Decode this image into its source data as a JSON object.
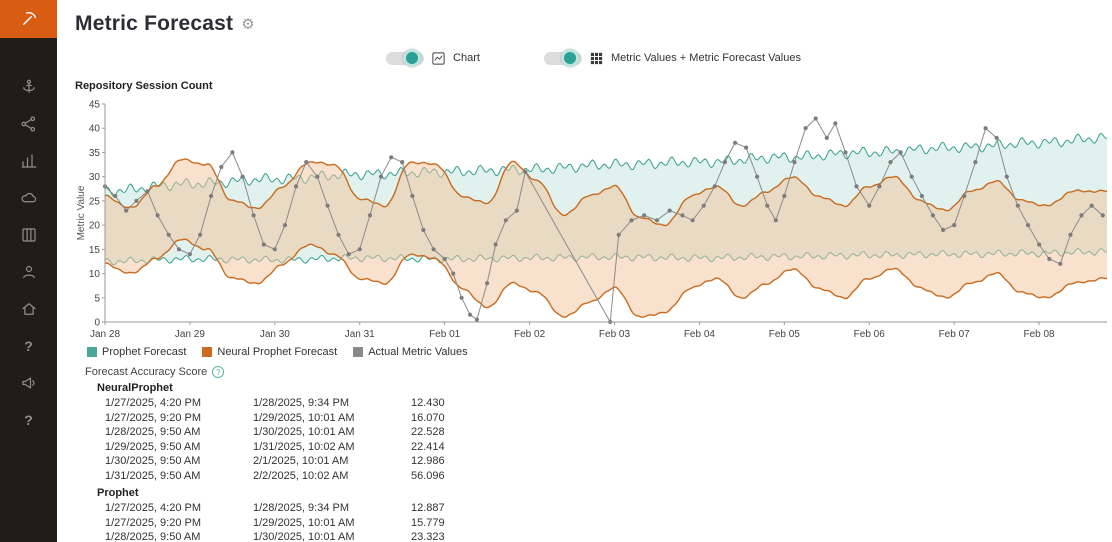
{
  "sidebar": {
    "icons": [
      "logo",
      "anchor",
      "connections",
      "bar-chart",
      "cloud",
      "library",
      "user",
      "home",
      "help",
      "announcements",
      "help-2"
    ]
  },
  "header": {
    "title": "Metric Forecast"
  },
  "controls": {
    "chart_toggle": {
      "label": "Chart",
      "state": "on"
    },
    "values_toggle": {
      "label": "Metric Values + Metric Forecast Values",
      "state": "on"
    }
  },
  "legend": [
    {
      "label": "Prophet Forecast",
      "color": "#4ba79a"
    },
    {
      "label": "Neural Prophet Forecast",
      "color": "#cc6a1f"
    },
    {
      "label": "Actual Metric Values",
      "color": "#8a8a8a"
    }
  ],
  "accuracy": {
    "title": "Forecast Accuracy Score",
    "groups": [
      {
        "name": "NeuralProphet",
        "rows": [
          [
            "1/27/2025, 4:20 PM",
            "1/28/2025, 9:34 PM",
            "12.430"
          ],
          [
            "1/27/2025, 9:20 PM",
            "1/29/2025, 10:01 AM",
            "16.070"
          ],
          [
            "1/28/2025, 9:50 AM",
            "1/30/2025, 10:01 AM",
            "22.528"
          ],
          [
            "1/29/2025, 9:50 AM",
            "1/31/2025, 10:02 AM",
            "22.414"
          ],
          [
            "1/30/2025, 9:50 AM",
            "2/1/2025, 10:01 AM",
            "12.986"
          ],
          [
            "1/31/2025, 9:50 AM",
            "2/2/2025, 10:02 AM",
            "56.096"
          ]
        ]
      },
      {
        "name": "Prophet",
        "rows": [
          [
            "1/27/2025, 4:20 PM",
            "1/28/2025, 9:34 PM",
            "12.887"
          ],
          [
            "1/27/2025, 9:20 PM",
            "1/29/2025, 10:01 AM",
            "15.779"
          ],
          [
            "1/28/2025, 9:50 AM",
            "1/30/2025, 10:01 AM",
            "23.323"
          ]
        ]
      }
    ]
  },
  "chart_data": {
    "type": "line",
    "title": "Repository Session Count",
    "ylabel": "Metric Value",
    "ylim": [
      0,
      45
    ],
    "y_tick_step": 5,
    "x_max": 11.8,
    "x_ticks": [
      "Jan 28",
      "Jan 29",
      "Jan 30",
      "Jan 31",
      "Feb 01",
      "Feb 02",
      "Feb 03",
      "Feb 04",
      "Feb 05",
      "Feb 06",
      "Feb 07",
      "Feb 08"
    ],
    "series": {
      "prophet_upper": {
        "name": "Prophet Forecast upper bound",
        "color": "#35a08f",
        "fill": "#c9e5df",
        "noise": 1.2,
        "points": [
          [
            0,
            27
          ],
          [
            1,
            28.5
          ],
          [
            2,
            29.5
          ],
          [
            3,
            30.5
          ],
          [
            4,
            31
          ],
          [
            5,
            31.5
          ],
          [
            6,
            32.5
          ],
          [
            7,
            33
          ],
          [
            8,
            34
          ],
          [
            9,
            35
          ],
          [
            10,
            36
          ],
          [
            11,
            37
          ],
          [
            11.8,
            38
          ]
        ]
      },
      "prophet_lower": {
        "name": "Prophet Forecast lower bound",
        "color": "#35a08f",
        "noise": 0.8,
        "points": [
          [
            0,
            12.5
          ],
          [
            1,
            13
          ],
          [
            2,
            12.8
          ],
          [
            3,
            13.2
          ],
          [
            4,
            13
          ],
          [
            5,
            13.2
          ],
          [
            6,
            13.4
          ],
          [
            7,
            13.2
          ],
          [
            8,
            13.5
          ],
          [
            9,
            13.8
          ],
          [
            10,
            14
          ],
          [
            11,
            14.2
          ],
          [
            11.8,
            14.5
          ]
        ]
      },
      "neural_upper": {
        "name": "Neural Prophet Forecast upper bound",
        "color": "#c96b1f",
        "fill": "#f2c49c",
        "noise": 0.25,
        "points": [
          [
            0,
            26
          ],
          [
            0.3,
            23.5
          ],
          [
            0.6,
            28
          ],
          [
            0.9,
            33.5
          ],
          [
            1.2,
            32.5
          ],
          [
            1.5,
            25
          ],
          [
            1.8,
            23.5
          ],
          [
            2.1,
            28
          ],
          [
            2.4,
            33
          ],
          [
            2.7,
            32.5
          ],
          [
            3,
            25.5
          ],
          [
            3.3,
            24
          ],
          [
            3.6,
            33
          ],
          [
            3.9,
            32.5
          ],
          [
            4.2,
            26
          ],
          [
            4.5,
            24.5
          ],
          [
            4.8,
            33
          ],
          [
            5.1,
            29
          ],
          [
            5.4,
            22
          ],
          [
            5.7,
            26
          ],
          [
            6,
            28
          ],
          [
            6.3,
            21.5
          ],
          [
            6.6,
            20
          ],
          [
            6.9,
            26
          ],
          [
            7.2,
            28
          ],
          [
            7.5,
            24
          ],
          [
            7.8,
            27
          ],
          [
            8.1,
            30
          ],
          [
            8.4,
            26
          ],
          [
            8.7,
            24
          ],
          [
            9,
            28
          ],
          [
            9.3,
            30
          ],
          [
            9.6,
            25
          ],
          [
            9.9,
            23
          ],
          [
            10.2,
            27
          ],
          [
            10.5,
            29
          ],
          [
            10.8,
            25
          ],
          [
            11.1,
            24
          ],
          [
            11.4,
            27
          ],
          [
            11.8,
            27
          ]
        ]
      },
      "neural_lower": {
        "name": "Neural Prophet Forecast lower bound",
        "color": "#c96b1f",
        "noise": 0.25,
        "points": [
          [
            0,
            12
          ],
          [
            0.3,
            10
          ],
          [
            0.6,
            13
          ],
          [
            0.9,
            17
          ],
          [
            1.2,
            15
          ],
          [
            1.5,
            9
          ],
          [
            1.8,
            8
          ],
          [
            2.1,
            12
          ],
          [
            2.4,
            16
          ],
          [
            2.7,
            14
          ],
          [
            3,
            9
          ],
          [
            3.3,
            8
          ],
          [
            3.6,
            14
          ],
          [
            3.9,
            13
          ],
          [
            4.2,
            7
          ],
          [
            4.5,
            3
          ],
          [
            4.8,
            8
          ],
          [
            5.1,
            6
          ],
          [
            5.4,
            1
          ],
          [
            5.7,
            4
          ],
          [
            6,
            7
          ],
          [
            6.3,
            1
          ],
          [
            6.6,
            2
          ],
          [
            6.9,
            7
          ],
          [
            7.2,
            9
          ],
          [
            7.5,
            5
          ],
          [
            7.8,
            8
          ],
          [
            8.1,
            11
          ],
          [
            8.4,
            7
          ],
          [
            8.7,
            5
          ],
          [
            9,
            9
          ],
          [
            9.3,
            11
          ],
          [
            9.6,
            7
          ],
          [
            9.9,
            5
          ],
          [
            10.2,
            8
          ],
          [
            10.5,
            10
          ],
          [
            10.8,
            6
          ],
          [
            11.1,
            5
          ],
          [
            11.4,
            8
          ],
          [
            11.8,
            9
          ]
        ]
      },
      "actual": {
        "name": "Actual Metric Values",
        "color": "#8a8a8a",
        "points": [
          [
            0,
            28
          ],
          [
            0.12,
            26
          ],
          [
            0.25,
            23
          ],
          [
            0.37,
            25
          ],
          [
            0.5,
            27
          ],
          [
            0.62,
            22
          ],
          [
            0.75,
            18
          ],
          [
            0.87,
            15
          ],
          [
            1,
            14
          ],
          [
            1.12,
            18
          ],
          [
            1.25,
            26
          ],
          [
            1.37,
            32
          ],
          [
            1.5,
            35
          ],
          [
            1.62,
            30
          ],
          [
            1.75,
            22
          ],
          [
            1.87,
            16
          ],
          [
            2,
            15
          ],
          [
            2.12,
            20
          ],
          [
            2.25,
            28
          ],
          [
            2.37,
            33
          ],
          [
            2.5,
            30
          ],
          [
            2.62,
            24
          ],
          [
            2.75,
            18
          ],
          [
            2.87,
            14
          ],
          [
            3,
            15
          ],
          [
            3.12,
            22
          ],
          [
            3.25,
            30
          ],
          [
            3.37,
            34
          ],
          [
            3.5,
            33
          ],
          [
            3.62,
            26
          ],
          [
            3.75,
            19
          ],
          [
            3.87,
            15
          ],
          [
            4,
            13
          ],
          [
            4.1,
            10
          ],
          [
            4.2,
            5
          ],
          [
            4.3,
            1.5
          ],
          [
            4.38,
            0.5
          ],
          [
            4.5,
            8
          ],
          [
            4.6,
            16
          ],
          [
            4.72,
            21
          ],
          [
            4.85,
            23
          ],
          [
            4.95,
            31
          ],
          [
            5.95,
            0
          ],
          [
            6.05,
            18
          ],
          [
            6.2,
            21
          ],
          [
            6.35,
            22
          ],
          [
            6.5,
            21
          ],
          [
            6.65,
            23
          ],
          [
            6.8,
            22
          ],
          [
            6.92,
            21
          ],
          [
            7.05,
            24
          ],
          [
            7.18,
            28
          ],
          [
            7.3,
            33
          ],
          [
            7.42,
            37
          ],
          [
            7.55,
            36
          ],
          [
            7.68,
            30
          ],
          [
            7.8,
            24
          ],
          [
            7.9,
            21
          ],
          [
            8,
            26
          ],
          [
            8.12,
            33
          ],
          [
            8.25,
            40
          ],
          [
            8.37,
            42
          ],
          [
            8.5,
            38
          ],
          [
            8.6,
            41
          ],
          [
            8.72,
            35
          ],
          [
            8.85,
            28
          ],
          [
            9,
            24
          ],
          [
            9.12,
            28
          ],
          [
            9.25,
            33
          ],
          [
            9.37,
            35
          ],
          [
            9.5,
            30
          ],
          [
            9.62,
            26
          ],
          [
            9.75,
            22
          ],
          [
            9.87,
            19
          ],
          [
            10,
            20
          ],
          [
            10.12,
            26
          ],
          [
            10.25,
            33
          ],
          [
            10.37,
            40
          ],
          [
            10.5,
            38
          ],
          [
            10.62,
            30
          ],
          [
            10.75,
            24
          ],
          [
            10.87,
            20
          ],
          [
            11,
            16
          ],
          [
            11.12,
            13
          ],
          [
            11.25,
            12
          ],
          [
            11.37,
            18
          ],
          [
            11.5,
            22
          ],
          [
            11.62,
            24
          ],
          [
            11.75,
            22
          ]
        ]
      }
    }
  }
}
